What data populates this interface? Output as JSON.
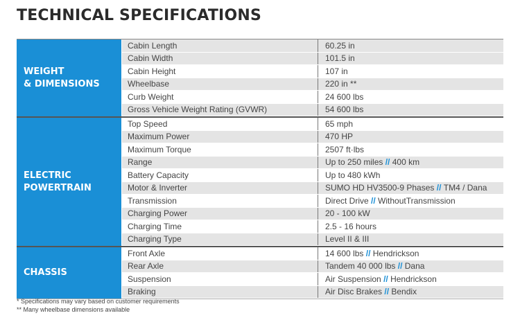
{
  "title": "TECHNICAL SPECIFICATIONS",
  "sections": [
    {
      "name_line1": "WEIGHT",
      "name_line2": "& DIMENSIONS",
      "rows": [
        {
          "label": "Cabin Length",
          "value": "60.25 in"
        },
        {
          "label": "Cabin Width",
          "value": "101.5 in"
        },
        {
          "label": "Cabin Height",
          "value": "107 in"
        },
        {
          "label": "Wheelbase",
          "value": "220 in **"
        },
        {
          "label": "Curb Weight",
          "value": "24 600 lbs"
        },
        {
          "label": "Gross Vehicle Weight Rating (GVWR)",
          "value": "54 600 lbs"
        }
      ]
    },
    {
      "name_line1": "ELECTRIC",
      "name_line2": "POWERTRAIN",
      "rows": [
        {
          "label": "Top Speed",
          "value": "65 mph"
        },
        {
          "label": "Maximum Power",
          "value": "470 HP"
        },
        {
          "label": "Maximum Torque",
          "value": "2507 ft·lbs"
        },
        {
          "label": "Range",
          "value_a": "Up to 250 miles",
          "sep": "//",
          "value_b": "400 km"
        },
        {
          "label": "Battery Capacity",
          "value": "Up to 480 kWh"
        },
        {
          "label": "Motor & Inverter",
          "value_a": "SUMO HD HV3500-9 Phases",
          "sep": "//",
          "value_b": "TM4 / Dana"
        },
        {
          "label": "Transmission",
          "value_a": "Direct Drive",
          "sep": "//",
          "value_b": "WithoutTransmission"
        },
        {
          "label": "Charging Power",
          "value": "20 - 100 kW"
        },
        {
          "label": "Charging Time",
          "value": "2.5 - 16 hours"
        },
        {
          "label": "Charging Type",
          "value": "Level II & III"
        }
      ]
    },
    {
      "name_line1": "CHASSIS",
      "name_line2": "",
      "rows": [
        {
          "label": "Front Axle",
          "value_a": "14 600 lbs",
          "sep": "//",
          "value_b": "Hendrickson"
        },
        {
          "label": "Rear Axle",
          "value_a": "Tandem 40 000 lbs",
          "sep": "//",
          "value_b": "Dana"
        },
        {
          "label": "Suspension",
          "value_a": "Air Suspension",
          "sep": "//",
          "value_b": "Hendrickson"
        },
        {
          "label": "Braking",
          "value_a": "Air Disc Brakes",
          "sep": "//",
          "value_b": "Bendix"
        }
      ]
    }
  ],
  "notes": {
    "note1": "* Specifications may vary based on customer requirements",
    "note2": "** Many wheelbase dimensions available"
  },
  "colors": {
    "accent": "#1a8fd6",
    "shade": "#e4e4e4"
  }
}
